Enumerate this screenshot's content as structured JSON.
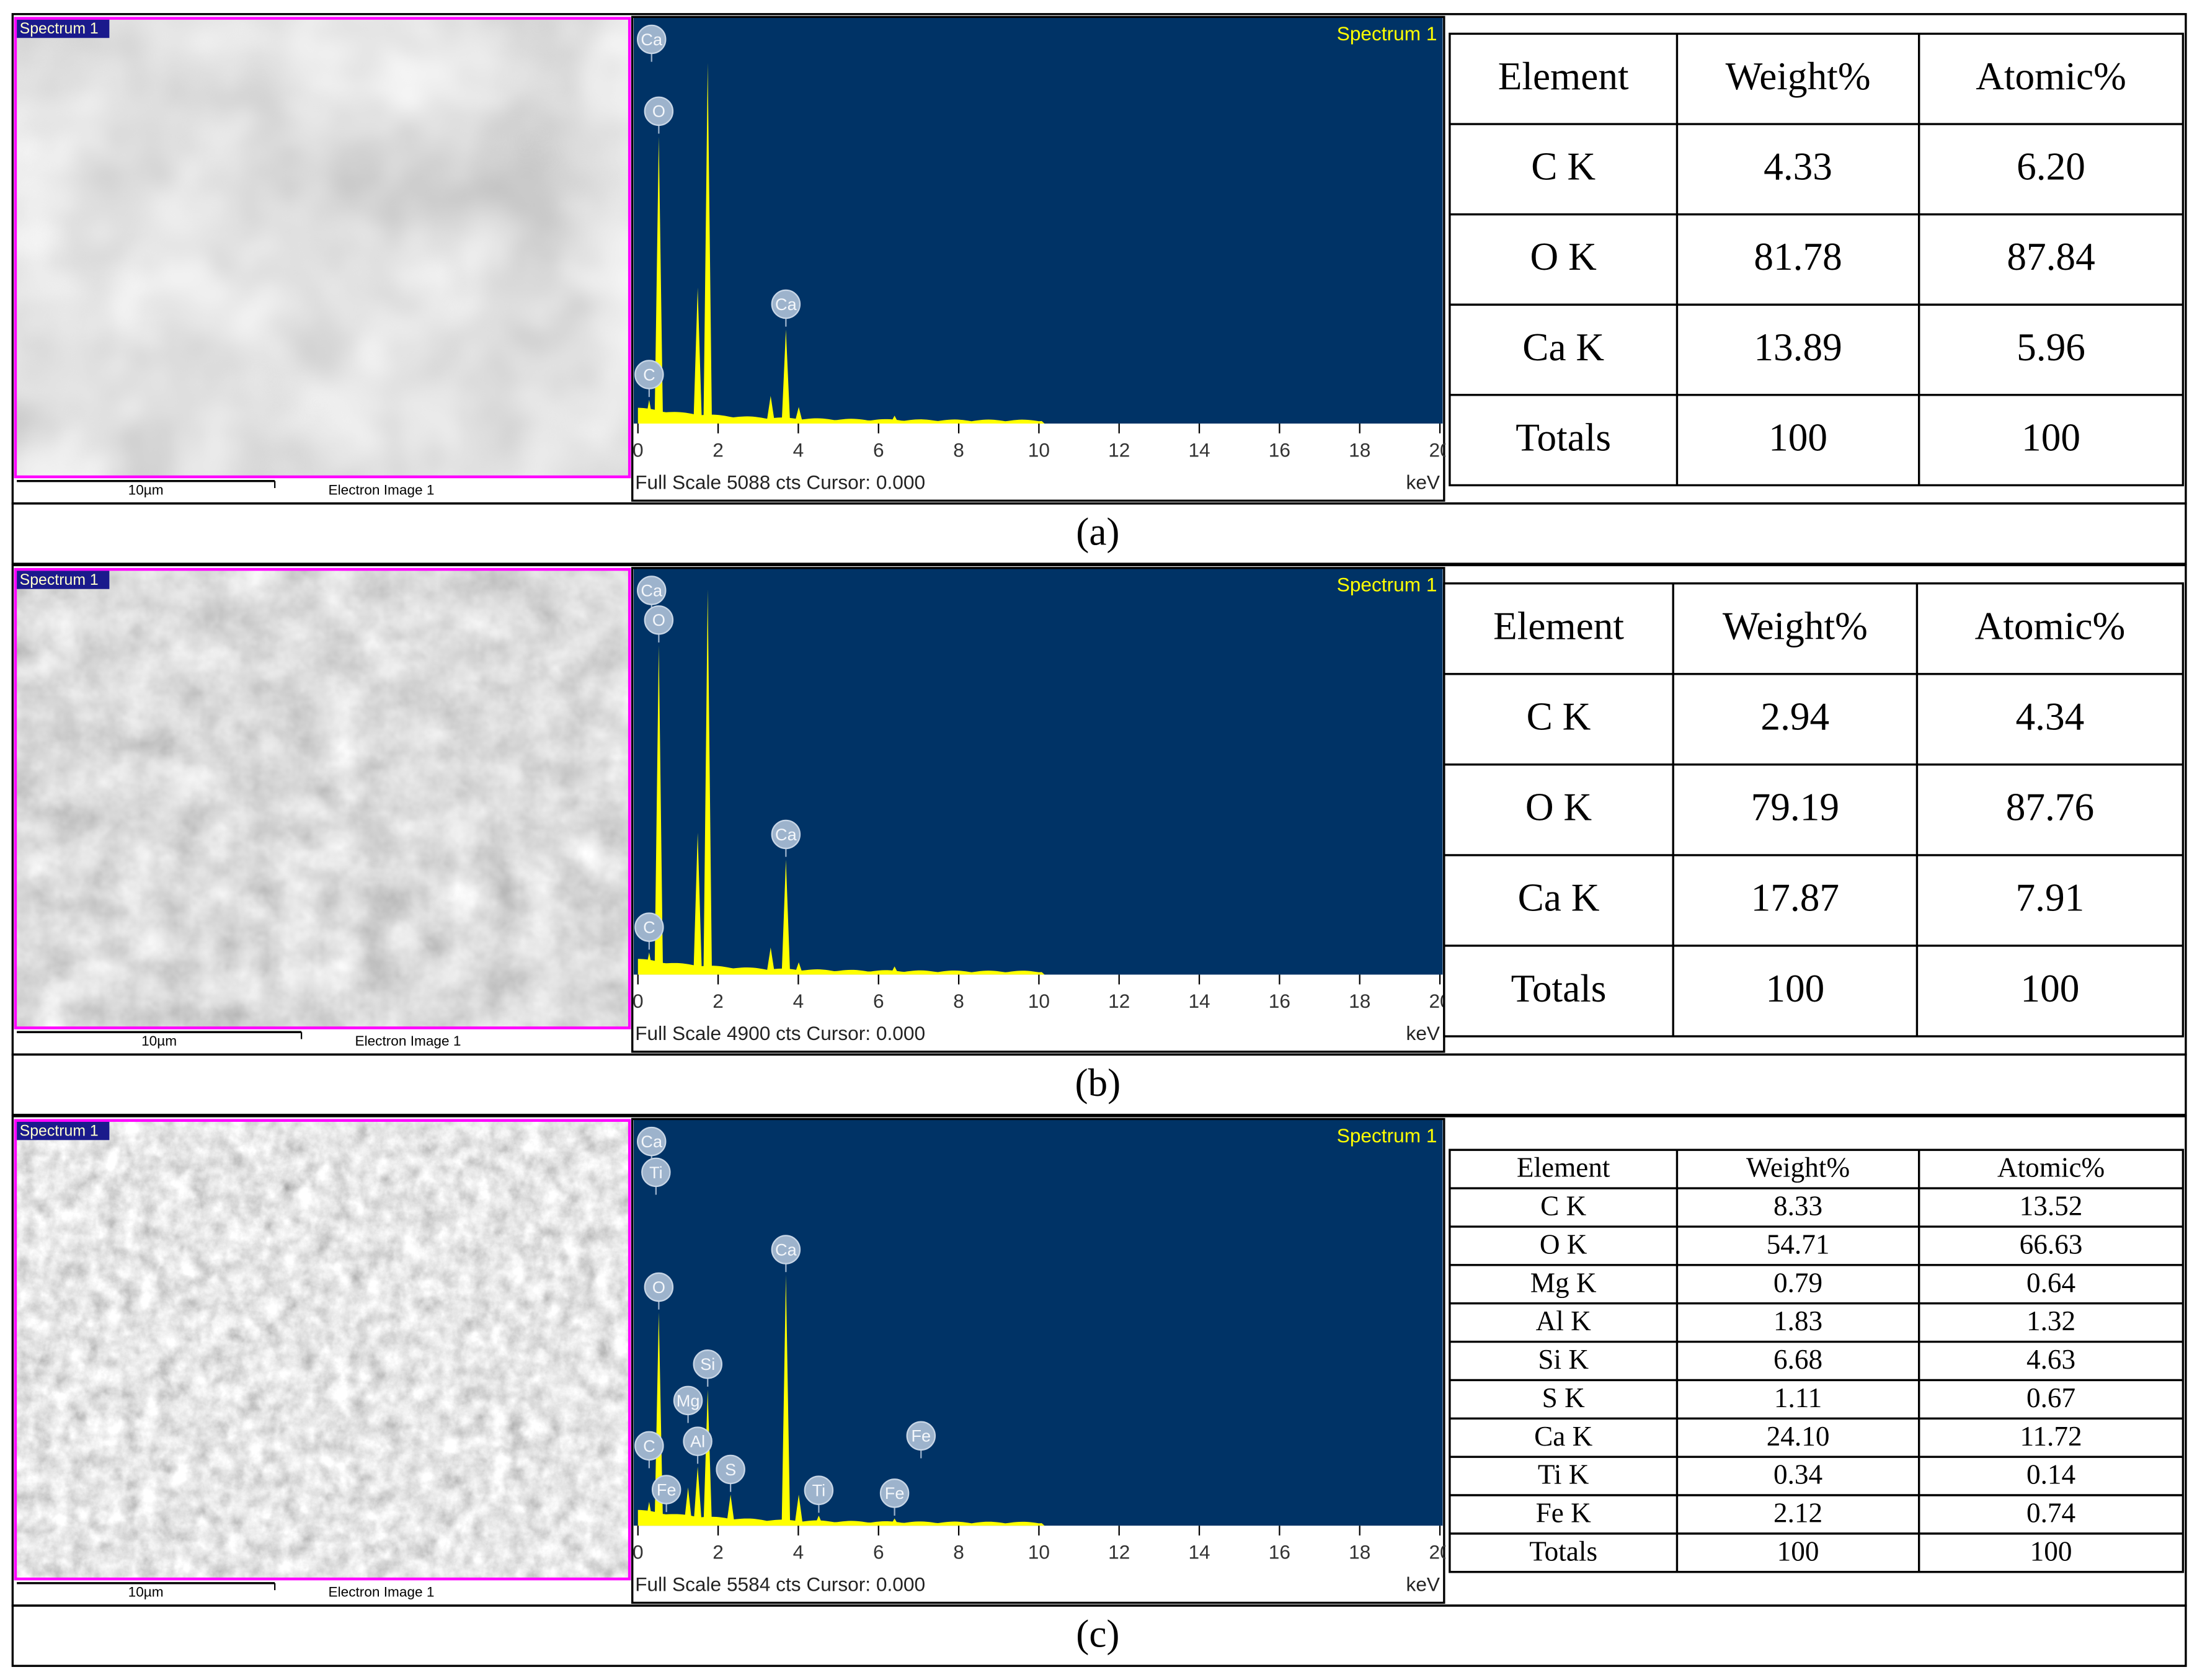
{
  "panels": [
    {
      "caption": "(a)",
      "image": {
        "title": "Spectrum 1",
        "scale_bar": "10µm",
        "label": "Electron Image 1"
      },
      "spectrum": {
        "title": "Spectrum 1",
        "footer": "Full Scale 5088 cts Cursor: 0.000",
        "x_unit": "keV",
        "xlim": [
          0,
          20
        ],
        "xticks": [
          0,
          2,
          4,
          6,
          8,
          10,
          12,
          14,
          16,
          18,
          20
        ],
        "ylim": [
          0,
          5088
        ],
        "color": "#ffff00",
        "peaks": {
          "energy": [
            0.28,
            0.52,
            1.49,
            1.74,
            3.31,
            3.69,
            4.01,
            6.4
          ],
          "counts": [
            300,
            3630,
            1720,
            4560,
            350,
            1190,
            210,
            100
          ]
        },
        "labels": [
          {
            "text": "Ca",
            "energy": 0.34
          },
          {
            "text": "O",
            "energy": 0.52
          },
          {
            "text": "C",
            "energy": 0.28
          },
          {
            "text": "Ca",
            "energy": 3.69
          }
        ]
      },
      "table": {
        "header": [
          "Element",
          "Weight%",
          "Atomic%"
        ],
        "rows": [
          [
            "C K",
            "4.33",
            "6.20"
          ],
          [
            "O K",
            "81.78",
            "87.84"
          ],
          [
            "Ca K",
            "13.89",
            "5.96"
          ],
          [
            "Totals",
            "100",
            "100"
          ]
        ]
      }
    },
    {
      "caption": "(b)",
      "image": {
        "title": "Spectrum 1",
        "scale_bar": "10µm",
        "label": "Electron Image 1"
      },
      "spectrum": {
        "title": "Spectrum 1",
        "footer": "Full Scale 4900 cts Cursor: 0.000",
        "x_unit": "keV",
        "xlim": [
          0,
          20
        ],
        "xticks": [
          0,
          2,
          4,
          6,
          8,
          10,
          12,
          14,
          16,
          18,
          20
        ],
        "ylim": [
          0,
          4900
        ],
        "color": "#ffff00",
        "peaks": {
          "energy": [
            0.28,
            0.52,
            1.49,
            1.74,
            3.31,
            3.69,
            4.01,
            6.4
          ],
          "counts": [
            270,
            4010,
            1730,
            4690,
            330,
            1400,
            150,
            100
          ]
        },
        "labels": [
          {
            "text": "Ca",
            "energy": 0.34
          },
          {
            "text": "O",
            "energy": 0.52
          },
          {
            "text": "C",
            "energy": 0.28
          },
          {
            "text": "Ca",
            "energy": 3.69
          }
        ]
      },
      "table": {
        "header": [
          "Element",
          "Weight%",
          "Atomic%"
        ],
        "rows": [
          [
            "C K",
            "2.94",
            "4.34"
          ],
          [
            "O K",
            "79.19",
            "87.76"
          ],
          [
            "Ca K",
            "17.87",
            "7.91"
          ],
          [
            "Totals",
            "100",
            "100"
          ]
        ]
      }
    },
    {
      "caption": "(c)",
      "image": {
        "title": "Spectrum 1",
        "scale_bar": "10µm",
        "label": "Electron Image 1"
      },
      "spectrum": {
        "title": "Spectrum 1",
        "footer": "Full Scale 5584 cts Cursor: 0.000",
        "x_unit": "keV",
        "xlim": [
          0,
          20
        ],
        "xticks": [
          0,
          2,
          4,
          6,
          8,
          10,
          12,
          14,
          16,
          18,
          20
        ],
        "ylim": [
          0,
          5584
        ],
        "color": "#ffff00",
        "peaks": {
          "energy": [
            0.28,
            0.52,
            0.71,
            1.25,
            1.49,
            1.74,
            2.31,
            3.69,
            4.01,
            4.51,
            6.4,
            7.06
          ],
          "counts": [
            330,
            2960,
            150,
            530,
            820,
            1890,
            430,
            3480,
            430,
            140,
            100,
            40
          ]
        },
        "labels": [
          {
            "text": "Ca",
            "energy": 0.34
          },
          {
            "text": "O",
            "energy": 0.52
          },
          {
            "text": "Ti",
            "energy": 0.45
          },
          {
            "text": "Fe",
            "energy": 0.71
          },
          {
            "text": "Si",
            "energy": 1.74
          },
          {
            "text": "Al",
            "energy": 1.49
          },
          {
            "text": "Mg",
            "energy": 1.25
          },
          {
            "text": "C",
            "energy": 0.28
          },
          {
            "text": "S",
            "energy": 2.31
          },
          {
            "text": "Ca",
            "energy": 3.69
          },
          {
            "text": "Ti",
            "energy": 4.51
          },
          {
            "text": "Fe",
            "energy": 6.4
          },
          {
            "text": "Fe",
            "energy": 7.06
          }
        ]
      },
      "table": {
        "header": [
          "Element",
          "Weight%",
          "Atomic%"
        ],
        "rows": [
          [
            "C K",
            "8.33",
            "13.52"
          ],
          [
            "O K",
            "54.71",
            "66.63"
          ],
          [
            "Mg K",
            "0.79",
            "0.64"
          ],
          [
            "Al K",
            "1.83",
            "1.32"
          ],
          [
            "Si K",
            "6.68",
            "4.63"
          ],
          [
            "S K",
            "1.11",
            "0.67"
          ],
          [
            "Ca K",
            "24.10",
            "11.72"
          ],
          [
            "Ti K",
            "0.34",
            "0.14"
          ],
          [
            "Fe K",
            "2.12",
            "0.74"
          ],
          [
            "Totals",
            "100",
            "100"
          ]
        ]
      }
    }
  ]
}
